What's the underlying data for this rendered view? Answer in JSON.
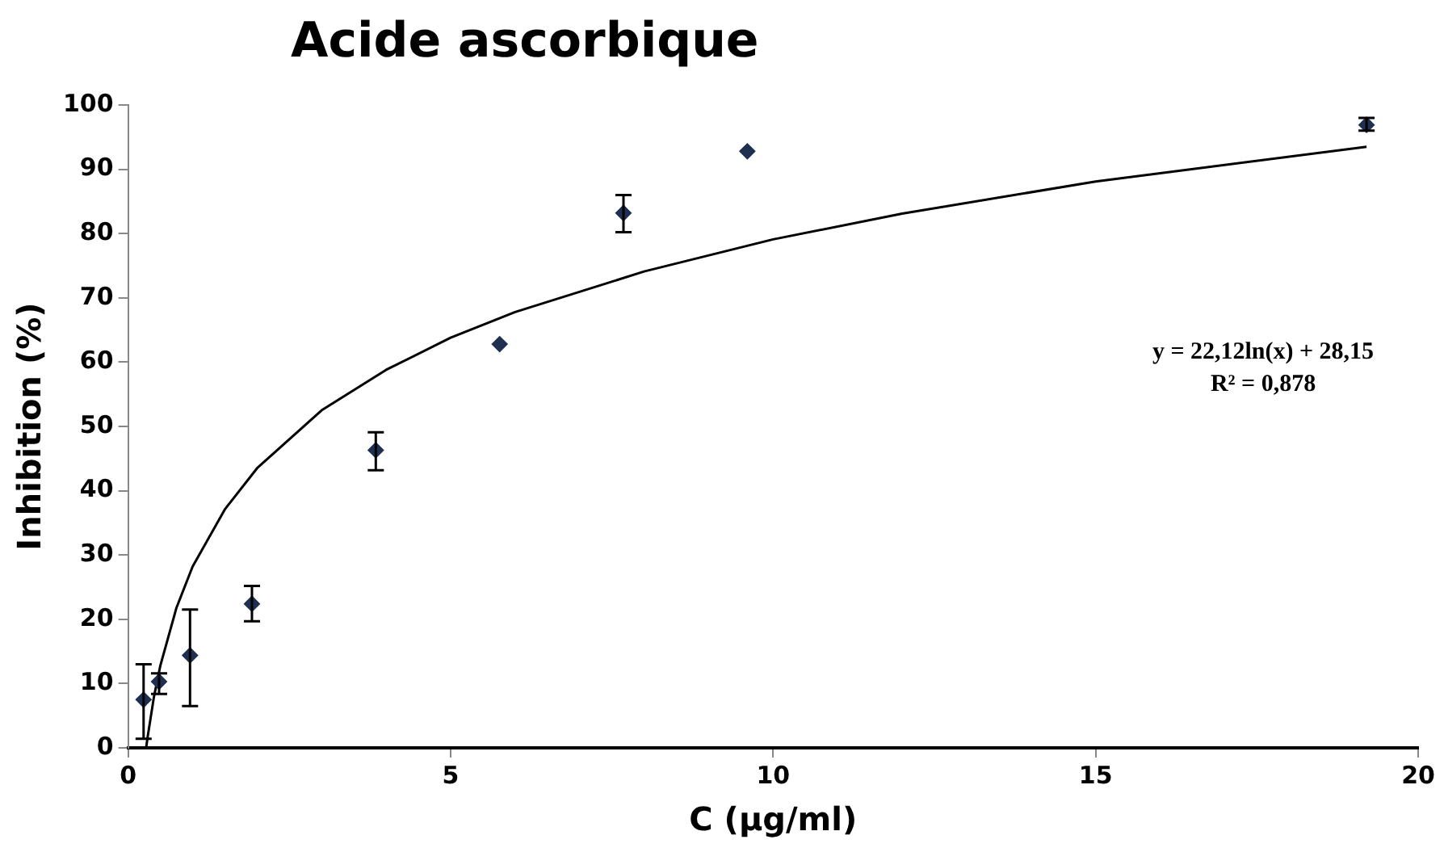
{
  "chart_data": {
    "type": "scatter",
    "title": "Acide ascorbique",
    "xlabel": "C (µg/ml)",
    "ylabel": "Inhibition (%)",
    "xlim": [
      0,
      20
    ],
    "xticks": [
      0,
      5,
      10,
      15,
      20
    ],
    "ylim": [
      0,
      100
    ],
    "yticks": [
      0,
      10,
      20,
      30,
      40,
      50,
      60,
      70,
      80,
      90,
      100
    ],
    "grid": false,
    "legend": false,
    "marker": "diamond",
    "annotations": [
      "y = 22,12ln(x) + 28,15",
      "R² = 0,878"
    ],
    "series": [
      {
        "color": "#1f3050",
        "x": [
          0.24,
          0.48,
          0.96,
          1.92,
          3.84,
          5.76,
          7.68,
          9.6,
          19.2
        ],
        "values": [
          7.5,
          10.3,
          14.4,
          22.4,
          46.3,
          62.8,
          83.2,
          92.8,
          96.9
        ],
        "errors": [
          [
            1.4,
            13
          ],
          [
            8.4,
            11.6
          ],
          [
            6.5,
            21.5
          ],
          [
            19.7,
            25.2
          ],
          [
            43.2,
            49.1
          ],
          null,
          [
            80.2,
            86
          ],
          null,
          [
            96,
            98
          ]
        ]
      },
      {
        "type": "line",
        "color": "#000000",
        "marker": "none",
        "line_style": "solid",
        "x": [
          0.28,
          0.3,
          0.4,
          0.5,
          0.75,
          1,
          1.5,
          2,
          3,
          4,
          5,
          6,
          8,
          10,
          12,
          15,
          19.2
        ],
        "values": [
          0,
          1.5,
          7.9,
          12.8,
          21.8,
          28.2,
          37.1,
          43.5,
          52.5,
          58.8,
          63.8,
          67.8,
          74.1,
          79.1,
          83.1,
          88.1,
          93.5
        ]
      }
    ]
  }
}
